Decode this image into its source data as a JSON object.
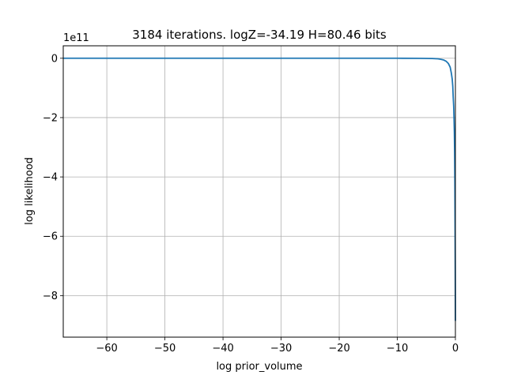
{
  "chart_data": {
    "type": "line",
    "title": "3184 iterations. logZ=-34.19 H=80.46 bits",
    "xlabel": "log prior_volume",
    "ylabel": "log likelihood",
    "y_offset_label": "1e11",
    "xlim": [
      -67.5,
      0
    ],
    "ylim": [
      -9.4,
      0.42
    ],
    "y_scale_factor": 100000000000,
    "x_ticks": [
      -60,
      -50,
      -40,
      -30,
      -20,
      -10,
      0
    ],
    "x_tick_labels": [
      "−60",
      "−50",
      "−40",
      "−30",
      "−20",
      "−10",
      "0"
    ],
    "y_ticks": [
      0,
      -2,
      -4,
      -6,
      -8
    ],
    "y_tick_labels": [
      "0",
      "−2",
      "−4",
      "−6",
      "−8"
    ],
    "grid": true,
    "series": [
      {
        "color": "#1f77b4",
        "x": [
          -67.5,
          -60,
          -50,
          -40,
          -30,
          -20,
          -10,
          -6,
          -4,
          -3,
          -2.5,
          -2,
          -1.6,
          -1.2,
          -0.9,
          -0.7,
          -0.55,
          -0.45,
          -0.38,
          -0.3,
          -0.24,
          -0.18,
          -0.13,
          -0.09,
          -0.06,
          -0.03,
          -0.01,
          0
        ],
        "y": [
          0,
          0,
          0,
          0,
          0,
          0,
          0,
          -0.002,
          -0.01,
          -0.02,
          -0.035,
          -0.06,
          -0.1,
          -0.18,
          -0.3,
          -0.5,
          -0.7,
          -0.95,
          -1.3,
          -1.6,
          -2.0,
          -2.5,
          -3.2,
          -4.2,
          -5.5,
          -7.0,
          -8.2,
          -8.85
        ]
      }
    ]
  }
}
